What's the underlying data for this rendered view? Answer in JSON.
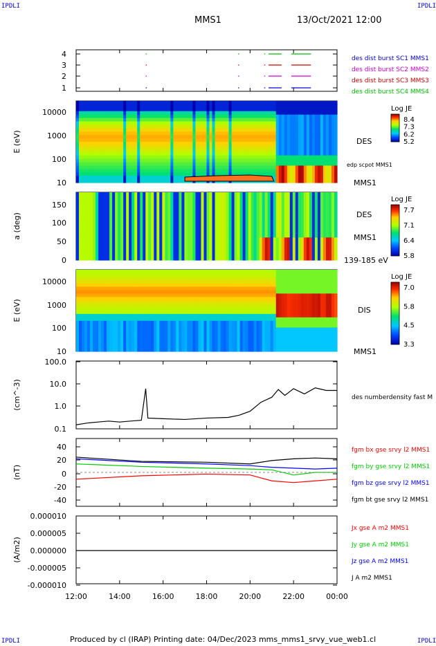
{
  "corners": {
    "tl": "IPDLI",
    "tr": "IPDLI",
    "bl": "IPDLI",
    "br": "IPDLI"
  },
  "header": {
    "spacecraft": "MMS1",
    "date": "13/Oct/2021 12:00"
  },
  "footer": "Produced by cl (IRAP)   Printing date: 04/Dec/2023   mms_mms1_srvy_vue_web1.cl",
  "chart_data": [
    {
      "type": "scatter",
      "panel": "burst-availability",
      "y_ticks": [
        "4",
        "3",
        "2",
        "1"
      ],
      "legend": [
        {
          "name": "des dist burst SC1 MMS1",
          "color": "#0000cc"
        },
        {
          "name": "des dist burst SC2 MMS2",
          "color": "#cc00cc"
        },
        {
          "name": "des dist burst SC3 MMS3",
          "color": "#cc0000"
        },
        {
          "name": "des dist burst SC4 MMS4",
          "color": "#00bb00"
        }
      ],
      "segments_hours": [
        [
          15.2,
          15.25
        ],
        [
          19.45,
          19.5
        ],
        [
          20.65,
          20.7
        ],
        [
          20.85,
          21.45
        ],
        [
          21.9,
          22.8
        ]
      ]
    },
    {
      "type": "heatmap",
      "panel": "des-energy",
      "ylabel": "E (eV)",
      "y_ticks": [
        "10000",
        "1000",
        "100",
        "10"
      ],
      "right_label": "DES",
      "right_sub": "edp scpot MMS1",
      "right_sub2": "MMS1",
      "colorbar": {
        "title": "Log JE",
        "ticks": [
          "8.4",
          "7.3",
          "6.2",
          "5.2"
        ]
      }
    },
    {
      "type": "heatmap",
      "panel": "des-pitch",
      "ylabel": "a (deg)",
      "y_ticks": [
        "150",
        "100",
        "50",
        "0"
      ],
      "right_label": "DES",
      "right_sub": "MMS1",
      "right_sub2": "139-185 eV",
      "colorbar": {
        "title": "Log JE",
        "ticks": [
          "7.7",
          "7.1",
          "6.4",
          "5.8"
        ]
      }
    },
    {
      "type": "heatmap",
      "panel": "dis-energy",
      "ylabel": "E (eV)",
      "y_ticks": [
        "10000",
        "1000",
        "100",
        "10"
      ],
      "right_label": "DIS",
      "right_sub2": "MMS1",
      "colorbar": {
        "title": "Log JE",
        "ticks": [
          "7.0",
          "5.8",
          "4.5",
          "3.3"
        ]
      }
    },
    {
      "type": "line",
      "panel": "density",
      "ylabel": "(cm^-3)",
      "y_ticks": [
        "100.0",
        "10.0",
        "1.0",
        "0.1"
      ],
      "scale": "log",
      "series": [
        {
          "name": "des numberdensity fast M",
          "color": "#000000",
          "x": [
            12.0,
            12.5,
            13.0,
            13.5,
            14.0,
            14.5,
            15.0,
            15.2,
            15.3,
            16.0,
            17.0,
            18.0,
            19.0,
            19.5,
            20.0,
            20.5,
            21.0,
            21.3,
            21.6,
            22.0,
            22.5,
            23.0,
            23.5,
            24.0
          ],
          "y": [
            0.15,
            0.18,
            0.2,
            0.22,
            0.2,
            0.22,
            0.24,
            6.0,
            0.3,
            0.28,
            0.26,
            0.3,
            0.32,
            0.4,
            0.6,
            1.5,
            2.5,
            5.5,
            3.0,
            6.0,
            3.5,
            6.5,
            5.0,
            5.0
          ]
        }
      ]
    },
    {
      "type": "line",
      "panel": "magnetic-field",
      "ylabel": "(nT)",
      "y_ticks": [
        "40",
        "20",
        "0",
        "-20",
        "-40"
      ],
      "series": [
        {
          "name": "fgm bx gse srvy l2 MMS1",
          "color": "#ff0000",
          "x": [
            12,
            15,
            18,
            20,
            21,
            22,
            23,
            24
          ],
          "y": [
            -8,
            -4,
            -2,
            -3,
            -10,
            -12,
            -10,
            -8
          ]
        },
        {
          "name": "fgm by gse srvy l2 MMS1",
          "color": "#00cc00",
          "x": [
            12,
            15,
            18,
            20,
            21,
            22,
            23,
            24
          ],
          "y": [
            10,
            7,
            5,
            4,
            3,
            -3,
            0,
            0
          ]
        },
        {
          "name": "fgm bz gse srvy l2 MMS1",
          "color": "#0000ff",
          "x": [
            12,
            15,
            18,
            20,
            21,
            22,
            23,
            24
          ],
          "y": [
            16,
            12,
            10,
            8,
            6,
            5,
            4,
            5
          ]
        },
        {
          "name": "fgm bt gse srvy l2 MMS1",
          "color": "#000000",
          "x": [
            12,
            15,
            18,
            20,
            21,
            22,
            23,
            24
          ],
          "y": [
            18,
            13,
            12,
            10,
            14,
            16,
            17,
            16
          ]
        }
      ]
    },
    {
      "type": "line",
      "panel": "current-density",
      "ylabel": "(A/m2)",
      "y_ticks": [
        "0.000010",
        "0.000005",
        "0.000000",
        "-0.000005",
        "-0.000010"
      ],
      "series": [
        {
          "name": "Jx gse A m2 MMS1",
          "color": "#ff0000"
        },
        {
          "name": "Jy gse A m2 MMS1",
          "color": "#00cc00"
        },
        {
          "name": "Jz gse A m2 MMS1",
          "color": "#0000ff"
        },
        {
          "name": "J A m2 MMS1",
          "color": "#000000"
        }
      ]
    }
  ],
  "x_axis": {
    "ticks": [
      "12:00",
      "14:00",
      "16:00",
      "18:00",
      "20:00",
      "22:00",
      "00:00"
    ],
    "range_hours": [
      12,
      24
    ]
  }
}
